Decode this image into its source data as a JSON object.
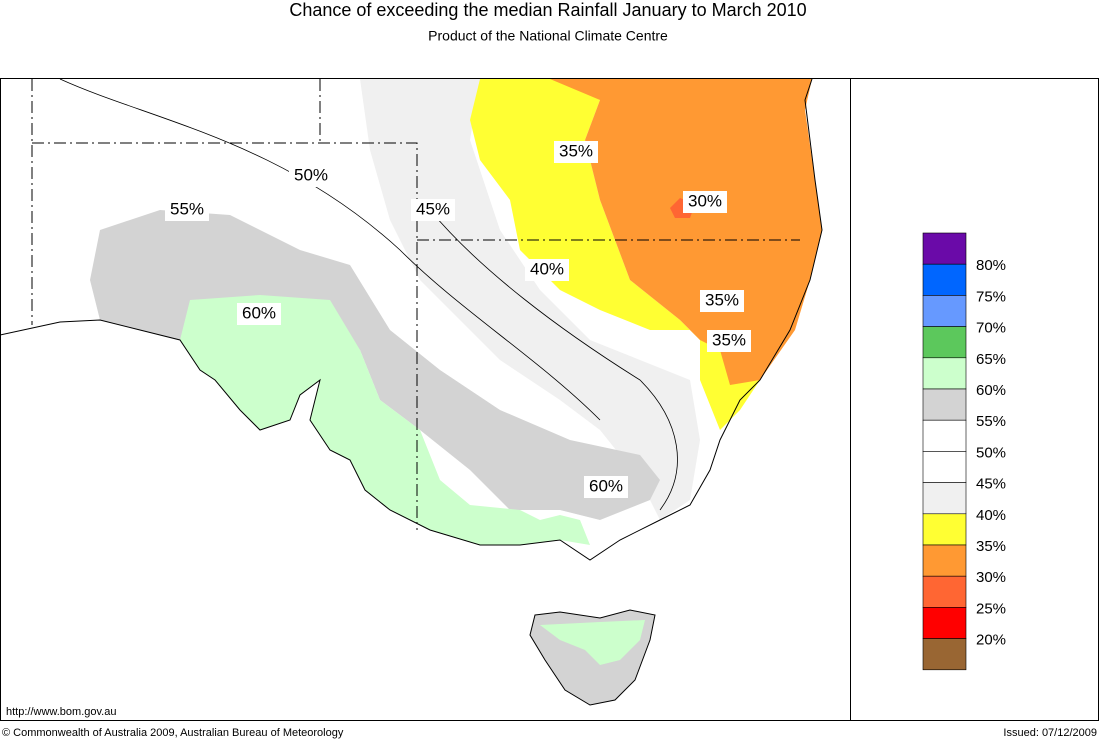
{
  "header": {
    "title": "Chance of exceeding the median Rainfall January to March 2010",
    "subtitle": "Product of the National Climate Centre"
  },
  "contour_labels": [
    "50%",
    "45%",
    "55%",
    "60%",
    "40%",
    "35%",
    "30%",
    "35%",
    "35%",
    "60%"
  ],
  "legend": [
    {
      "color": "#6a0aa8"
    },
    {
      "color": "#0066ff",
      "label": "80%"
    },
    {
      "color": "#6699ff",
      "label": "75%"
    },
    {
      "color": "#5cc85c",
      "label": "70%"
    },
    {
      "color": "#ccffcc",
      "label": "65%"
    },
    {
      "color": "#d3d3d3",
      "label": "60%"
    },
    {
      "color": "#ffffff",
      "label": "55%"
    },
    {
      "color": "#ffffff",
      "label": "50%"
    },
    {
      "color": "#f0f0f0",
      "label": "45%"
    },
    {
      "color": "#ffff33",
      "label": "40%"
    },
    {
      "color": "#ff9933",
      "label": "35%"
    },
    {
      "color": "#ff6633",
      "label": "30%"
    },
    {
      "color": "#ff0000",
      "label": "25%"
    },
    {
      "color": "#996633",
      "label": "20%"
    }
  ],
  "footer": {
    "url": "http://www.bom.gov.au",
    "copyright": "© Commonwealth of Australia 2009, Australian Bureau of Meteorology",
    "issued": "Issued: 07/12/2009"
  }
}
